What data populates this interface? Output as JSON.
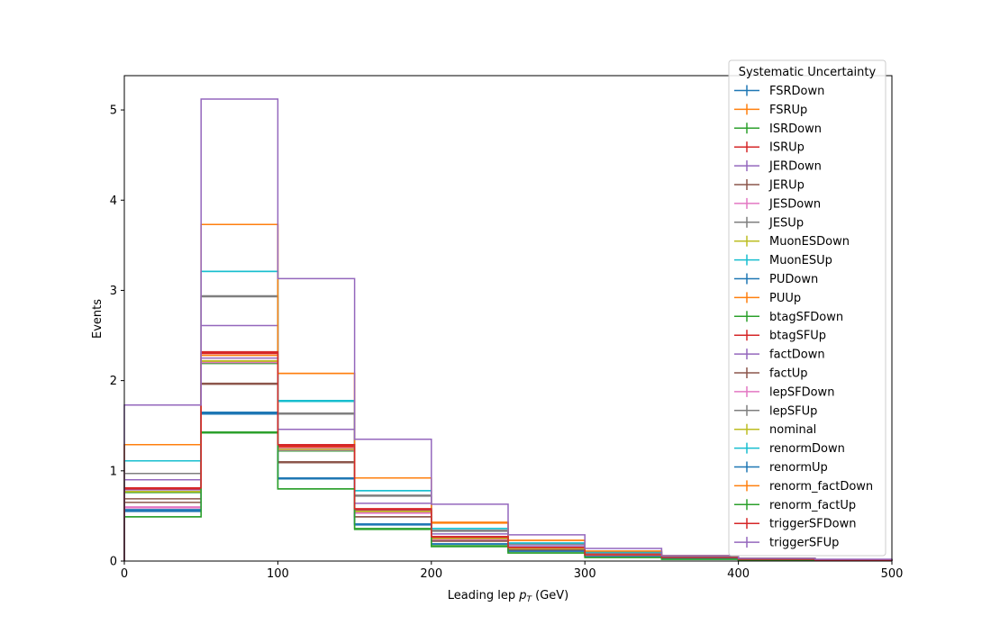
{
  "chart_data": {
    "type": "step-histogram",
    "xlabel_main": "Leading lep ",
    "xlabel_symbol": "p",
    "xlabel_subscript": "T",
    "xlabel_unit": " (GeV)",
    "ylabel": "Events",
    "xlim": [
      0,
      500
    ],
    "ylim": [
      0,
      5.38
    ],
    "bin_edges": [
      0,
      50,
      100,
      150,
      200,
      250,
      300,
      350,
      400,
      450,
      500
    ],
    "x_ticks": [
      0,
      100,
      200,
      300,
      400,
      500
    ],
    "y_ticks": [
      0,
      1,
      2,
      3,
      4,
      5
    ],
    "legend_title": "Systematic Uncertainty",
    "legend_position": "upper right",
    "series": [
      {
        "name": "FSRDown",
        "color": "#1f77b4",
        "values": [
          0.55,
          1.63,
          0.91,
          0.4,
          0.19,
          0.11,
          0.05,
          0.03,
          0.01,
          0.01
        ]
      },
      {
        "name": "FSRUp",
        "color": "#ff7f0e",
        "values": [
          0.8,
          2.28,
          1.26,
          0.57,
          0.26,
          0.15,
          0.07,
          0.04,
          0.02,
          0.01
        ]
      },
      {
        "name": "ISRDown",
        "color": "#2ca02c",
        "values": [
          0.76,
          2.19,
          1.22,
          0.55,
          0.25,
          0.14,
          0.07,
          0.04,
          0.02,
          0.01
        ]
      },
      {
        "name": "ISRUp",
        "color": "#d62728",
        "values": [
          0.81,
          2.31,
          1.28,
          0.57,
          0.27,
          0.15,
          0.07,
          0.04,
          0.02,
          0.01
        ]
      },
      {
        "name": "JERDown",
        "color": "#9467bd",
        "values": [
          0.79,
          2.25,
          1.25,
          0.56,
          0.26,
          0.15,
          0.07,
          0.04,
          0.02,
          0.01
        ]
      },
      {
        "name": "JERUp",
        "color": "#8c564b",
        "values": [
          0.69,
          1.96,
          1.09,
          0.49,
          0.23,
          0.13,
          0.06,
          0.03,
          0.02,
          0.01
        ]
      },
      {
        "name": "JESDown",
        "color": "#e377c2",
        "values": [
          0.6,
          2.22,
          1.25,
          0.54,
          0.24,
          0.14,
          0.07,
          0.03,
          0.02,
          0.01
        ]
      },
      {
        "name": "JESUp",
        "color": "#7f7f7f",
        "values": [
          0.97,
          2.94,
          1.64,
          0.73,
          0.34,
          0.19,
          0.09,
          0.05,
          0.02,
          0.01
        ]
      },
      {
        "name": "MuonESDown",
        "color": "#bcbd22",
        "values": [
          0.77,
          2.21,
          1.23,
          0.55,
          0.25,
          0.14,
          0.07,
          0.04,
          0.02,
          0.01
        ]
      },
      {
        "name": "MuonESUp",
        "color": "#17becf",
        "values": [
          1.11,
          3.21,
          1.77,
          0.78,
          0.36,
          0.2,
          0.1,
          0.05,
          0.03,
          0.01
        ]
      },
      {
        "name": "PUDown",
        "color": "#1f77b4",
        "values": [
          0.56,
          1.64,
          0.92,
          0.41,
          0.19,
          0.11,
          0.05,
          0.03,
          0.01,
          0.01
        ]
      },
      {
        "name": "PUUp",
        "color": "#ff7f0e",
        "values": [
          1.29,
          3.73,
          2.08,
          0.92,
          0.42,
          0.23,
          0.11,
          0.06,
          0.03,
          0.01
        ]
      },
      {
        "name": "btagSFDown",
        "color": "#2ca02c",
        "values": [
          0.49,
          1.42,
          0.8,
          0.35,
          0.16,
          0.09,
          0.04,
          0.02,
          0.01,
          0.01
        ]
      },
      {
        "name": "btagSFUp",
        "color": "#d62728",
        "values": [
          0.8,
          2.3,
          1.27,
          0.57,
          0.26,
          0.15,
          0.07,
          0.04,
          0.02,
          0.01
        ]
      },
      {
        "name": "factDown",
        "color": "#9467bd",
        "values": [
          0.9,
          2.61,
          1.46,
          0.64,
          0.3,
          0.17,
          0.08,
          0.04,
          0.02,
          0.01
        ]
      },
      {
        "name": "factUp",
        "color": "#8c564b",
        "values": [
          0.65,
          1.97,
          1.1,
          0.49,
          0.22,
          0.12,
          0.06,
          0.03,
          0.02,
          0.01
        ]
      },
      {
        "name": "lepSFDown",
        "color": "#e377c2",
        "values": [
          0.59,
          2.2,
          1.23,
          0.53,
          0.24,
          0.14,
          0.06,
          0.03,
          0.02,
          0.01
        ]
      },
      {
        "name": "lepSFUp",
        "color": "#7f7f7f",
        "values": [
          0.97,
          2.93,
          1.63,
          0.72,
          0.33,
          0.19,
          0.09,
          0.05,
          0.02,
          0.01
        ]
      },
      {
        "name": "nominal",
        "color": "#bcbd22",
        "values": [
          0.77,
          2.22,
          1.24,
          0.55,
          0.25,
          0.14,
          0.07,
          0.04,
          0.02,
          0.01
        ]
      },
      {
        "name": "renormDown",
        "color": "#17becf",
        "values": [
          1.11,
          3.21,
          1.78,
          0.78,
          0.36,
          0.2,
          0.1,
          0.05,
          0.03,
          0.01
        ]
      },
      {
        "name": "renormUp",
        "color": "#1f77b4",
        "values": [
          0.57,
          1.65,
          0.92,
          0.41,
          0.19,
          0.11,
          0.05,
          0.03,
          0.01,
          0.01
        ]
      },
      {
        "name": "renorm_factDown",
        "color": "#ff7f0e",
        "values": [
          1.29,
          3.73,
          2.08,
          0.92,
          0.43,
          0.23,
          0.11,
          0.06,
          0.03,
          0.01
        ]
      },
      {
        "name": "renorm_factUp",
        "color": "#2ca02c",
        "values": [
          0.49,
          1.43,
          0.8,
          0.36,
          0.17,
          0.09,
          0.04,
          0.02,
          0.01,
          0.01
        ]
      },
      {
        "name": "triggerSFDown",
        "color": "#d62728",
        "values": [
          0.81,
          2.32,
          1.29,
          0.58,
          0.27,
          0.15,
          0.07,
          0.04,
          0.02,
          0.01
        ]
      },
      {
        "name": "triggerSFUp",
        "color": "#9467bd",
        "values": [
          1.73,
          5.12,
          3.13,
          1.35,
          0.63,
          0.29,
          0.14,
          0.06,
          0.03,
          0.02
        ]
      }
    ]
  }
}
